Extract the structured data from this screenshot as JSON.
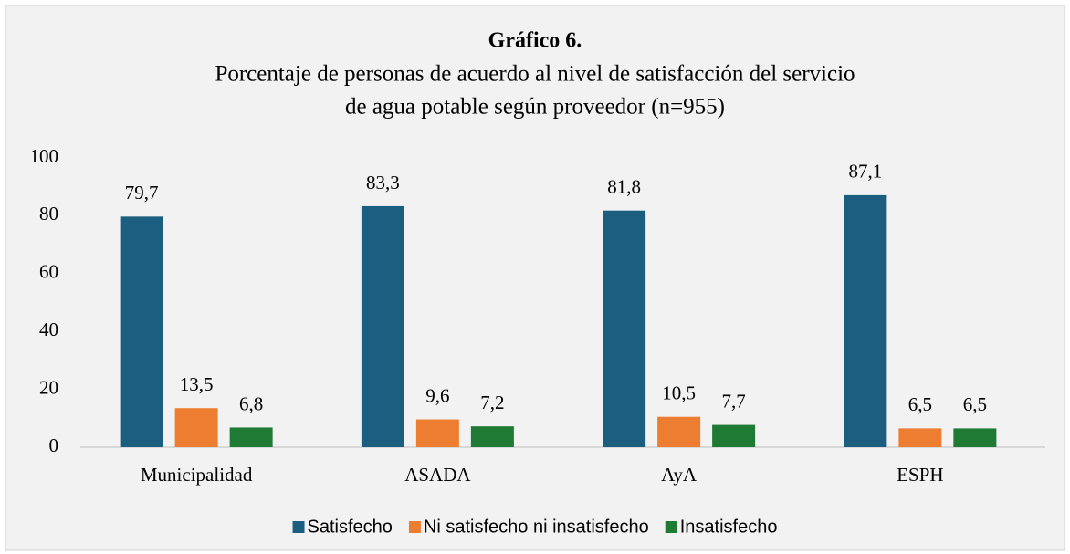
{
  "chart_data": {
    "type": "bar",
    "title": "Gráfico 6.",
    "subtitle": [
      "Porcentaje de personas de acuerdo al nivel de satisfacción del servicio",
      "de agua potable según proveedor (n=955)"
    ],
    "categories": [
      "Municipalidad",
      "ASADA",
      "AyA",
      "ESPH"
    ],
    "series": [
      {
        "name": "Satisfecho",
        "color": "#1b5e80",
        "values": [
          79.7,
          83.3,
          81.8,
          87.1
        ],
        "value_labels": [
          "79,7",
          "83,3",
          "81,8",
          "87,1"
        ]
      },
      {
        "name": "Ni satisfecho ni insatisfecho",
        "color": "#ed7d31",
        "values": [
          13.5,
          9.6,
          10.5,
          6.5
        ],
        "value_labels": [
          "13,5",
          "9,6",
          "10,5",
          "6,5"
        ]
      },
      {
        "name": "Insatisfecho",
        "color": "#1f7a33",
        "values": [
          6.8,
          7.2,
          7.7,
          6.5
        ],
        "value_labels": [
          "6,8",
          "7,2",
          "7,7",
          "6,5"
        ]
      }
    ],
    "ylim": [
      0,
      100
    ],
    "yticks": [
      0,
      20,
      40,
      60,
      80,
      100
    ],
    "grid": false,
    "legend": "bottom"
  }
}
